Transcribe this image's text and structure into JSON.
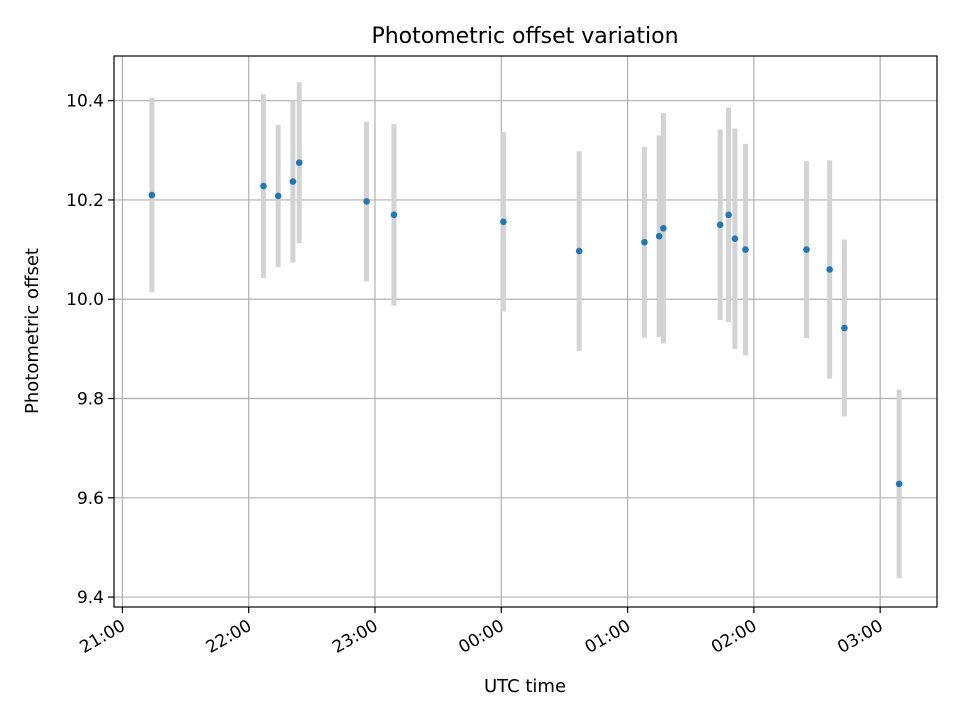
{
  "chart_data": {
    "type": "scatter",
    "title": "Photometric offset variation",
    "xlabel": "UTC time",
    "ylabel": "Photometric offset",
    "x_tick_labels": [
      "21:00",
      "22:00",
      "23:00",
      "00:00",
      "01:00",
      "02:00",
      "03:00"
    ],
    "y_tick_labels": [
      "9.4",
      "9.6",
      "9.8",
      "10.0",
      "10.2",
      "10.4"
    ],
    "y_ticks": [
      9.4,
      9.6,
      9.8,
      10.0,
      10.2,
      10.4
    ],
    "ylim": [
      9.38,
      10.49
    ],
    "xlim": [
      "20:56",
      "03:27"
    ],
    "grid": true,
    "marker_color": "#1f77b4",
    "errorbar_color": "#d3d3d3",
    "points": [
      {
        "x": "21:14",
        "y": 10.21,
        "err": 0.196
      },
      {
        "x": "22:07",
        "y": 10.228,
        "err": 0.185
      },
      {
        "x": "22:14",
        "y": 10.208,
        "err": 0.143
      },
      {
        "x": "22:21",
        "y": 10.237,
        "err": 0.163
      },
      {
        "x": "22:24",
        "y": 10.275,
        "err": 0.162
      },
      {
        "x": "22:56",
        "y": 10.197,
        "err": 0.161
      },
      {
        "x": "23:09",
        "y": 10.17,
        "err": 0.183
      },
      {
        "x": "00:01",
        "y": 10.156,
        "err": 0.181
      },
      {
        "x": "00:37",
        "y": 10.097,
        "err": 0.201
      },
      {
        "x": "01:08",
        "y": 10.115,
        "err": 0.192
      },
      {
        "x": "01:15",
        "y": 10.127,
        "err": 0.203
      },
      {
        "x": "01:17",
        "y": 10.143,
        "err": 0.232
      },
      {
        "x": "01:44",
        "y": 10.15,
        "err": 0.192
      },
      {
        "x": "01:48",
        "y": 10.17,
        "err": 0.216
      },
      {
        "x": "01:51",
        "y": 10.122,
        "err": 0.222
      },
      {
        "x": "01:56",
        "y": 10.1,
        "err": 0.213
      },
      {
        "x": "02:25",
        "y": 10.1,
        "err": 0.178
      },
      {
        "x": "02:36",
        "y": 10.06,
        "err": 0.22
      },
      {
        "x": "02:43",
        "y": 9.942,
        "err": 0.178
      },
      {
        "x": "03:09",
        "y": 9.628,
        "err": 0.19
      }
    ]
  }
}
